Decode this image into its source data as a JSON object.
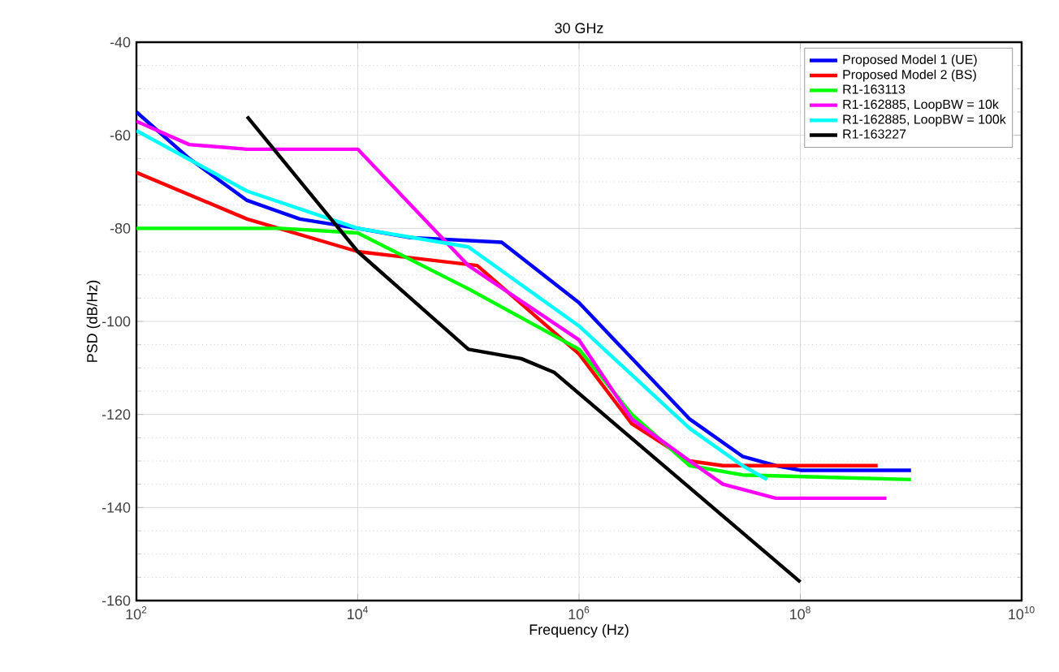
{
  "chart_data": {
    "type": "line",
    "title": "30 GHz",
    "xlabel": "Frequency (Hz)",
    "ylabel": "PSD (dB/Hz)",
    "log": "x",
    "grid": true,
    "legend": "top right",
    "line_style": "solid",
    "xlim": [
      100,
      10000000000
    ],
    "ylim": [
      -160,
      -40
    ],
    "xticks": [
      {
        "value": 100,
        "label": "10$^{2}$"
      },
      {
        "value": 10000,
        "label": "10$^{4}$"
      },
      {
        "value": 1000000,
        "label": "10$^{6}$"
      },
      {
        "value": 100000000,
        "label": "10$^{8}$"
      },
      {
        "value": 10000000000,
        "label": "10$^{10}$"
      }
    ],
    "yticks": [
      -160,
      -140,
      -120,
      -100,
      -80,
      -60,
      -40
    ],
    "series": [
      {
        "name": "Proposed Model 1 (UE)",
        "color": "#0000ff",
        "x": [
          100,
          300,
          1000,
          3000,
          10000,
          30000,
          200000,
          1000000,
          10000000,
          30000000,
          60000000,
          100000000,
          1000000000
        ],
        "values": [
          -55,
          -65,
          -74,
          -78,
          -80,
          -82,
          -83,
          -96,
          -121,
          -129,
          -131,
          -132,
          -132
        ]
      },
      {
        "name": "Proposed Model 2 (BS)",
        "color": "#ff0000",
        "x": [
          100,
          1000,
          10000,
          120000,
          1000000,
          3000000,
          10000000,
          20000000,
          500000000
        ],
        "values": [
          -68,
          -78,
          -85,
          -88,
          -107,
          -122,
          -130,
          -131,
          -131
        ]
      },
      {
        "name": "R1-163113",
        "color": "#00ff00",
        "x": [
          100,
          2000,
          10000,
          100000,
          1000000,
          3000000,
          10000000,
          30000000,
          1000000000
        ],
        "values": [
          -80,
          -80,
          -81,
          -93,
          -106,
          -120,
          -131,
          -133,
          -134
        ]
      },
      {
        "name": "R1-162885, LoopBW = 10k",
        "color": "#ff00ff",
        "x": [
          100,
          300,
          1000,
          10000,
          100000,
          1000000,
          3000000,
          10000000,
          20000000,
          60000000,
          600000000
        ],
        "values": [
          -57,
          -62,
          -63,
          -63,
          -88,
          -104,
          -121,
          -130,
          -135,
          -138,
          -138
        ]
      },
      {
        "name": "R1-162885, LoopBW = 100k",
        "color": "#00ffff",
        "x": [
          100,
          1000,
          10000,
          100000,
          1000000,
          10000000,
          30000000,
          50000000
        ],
        "values": [
          -59,
          -72,
          -80,
          -84,
          -101,
          -123,
          -131,
          -134
        ]
      },
      {
        "name": "R1-163227",
        "color": "#000000",
        "x": [
          1000,
          10000,
          100000,
          300000,
          600000,
          100000000
        ],
        "values": [
          -56,
          -85,
          -106,
          -108,
          -111,
          -156
        ]
      }
    ]
  }
}
